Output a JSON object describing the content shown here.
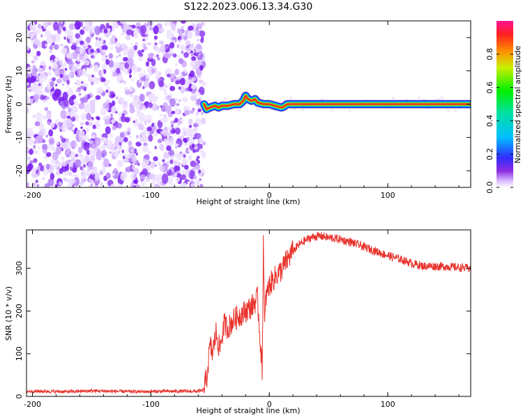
{
  "title": "S122.2023.006.13.34.G30",
  "colors": {
    "snr_line": "#e8322c",
    "ridge_center": "#e0201c",
    "noise": "#7a1ff0"
  },
  "chart_data": [
    {
      "type": "heatmap",
      "xlabel": "Height of straight line (km)",
      "ylabel": "Frequency (Hz)",
      "xlim": [
        -205,
        170
      ],
      "ylim": [
        -25,
        25
      ],
      "xticks": [
        -200,
        -100,
        0,
        100
      ],
      "xtick_labels": [
        "-200",
        "-100",
        "0",
        "100"
      ],
      "yticks": [
        -20,
        -10,
        0,
        10,
        20
      ],
      "ytick_labels": [
        "-20",
        "-10",
        "0",
        "10",
        "20"
      ],
      "noise_region_x": [
        -205,
        -55
      ],
      "ridge": {
        "x": [
          -55,
          -53,
          -50,
          -46,
          -43,
          -40,
          -35,
          -30,
          -25,
          -22,
          -20,
          -18,
          -15,
          -12,
          -10,
          -5,
          0,
          5,
          10,
          12,
          15,
          20,
          40,
          60,
          80,
          100,
          120,
          140,
          170
        ],
        "freq": [
          0,
          -1.5,
          -1.0,
          -0.5,
          -1.0,
          -0.5,
          -0.5,
          0,
          0,
          1.0,
          2.5,
          1.5,
          1.0,
          1.5,
          0.5,
          0,
          0,
          -0.5,
          -1.0,
          -0.8,
          0,
          0,
          0,
          0,
          0,
          0,
          0,
          0,
          0
        ]
      },
      "colorbar": {
        "label": "Normalized spectral amplitude",
        "range": [
          0.0,
          1.0
        ],
        "ticks": [
          0.0,
          0.2,
          0.4,
          0.6,
          0.8
        ],
        "tick_labels": [
          "0.0",
          "0.2",
          "0.4",
          "0.6",
          "0.8"
        ]
      }
    },
    {
      "type": "line",
      "xlabel": "Height of straight line (km)",
      "ylabel": "SNR (10 * v/v)",
      "xlim": [
        -205,
        170
      ],
      "ylim": [
        0,
        390
      ],
      "xticks": [
        -200,
        -100,
        0,
        100
      ],
      "xtick_labels": [
        "-200",
        "-100",
        "0",
        "100"
      ],
      "yticks": [
        0,
        100,
        200,
        300
      ],
      "ytick_labels": [
        "0",
        "100",
        "200",
        "300"
      ],
      "series": [
        {
          "x": [
            -205,
            -190,
            -170,
            -150,
            -130,
            -110,
            -90,
            -70,
            -60,
            -56,
            -53,
            -50,
            -48,
            -45,
            -42,
            -38,
            -35,
            -30,
            -25,
            -20,
            -15,
            -10,
            -6,
            -5,
            -4,
            -3,
            0,
            5,
            10,
            15,
            20,
            25,
            30,
            35,
            40,
            45,
            50,
            60,
            70,
            80,
            90,
            100,
            110,
            120,
            130,
            140,
            150,
            160,
            170
          ],
          "y": [
            12,
            12,
            11,
            13,
            12,
            11,
            12,
            12,
            12,
            14,
            40,
            120,
            100,
            150,
            110,
            170,
            160,
            180,
            190,
            200,
            210,
            230,
            60,
            370,
            160,
            230,
            260,
            280,
            295,
            320,
            340,
            355,
            365,
            372,
            375,
            375,
            372,
            368,
            360,
            350,
            340,
            330,
            322,
            312,
            305,
            305,
            304,
            302,
            300
          ]
        }
      ]
    }
  ]
}
